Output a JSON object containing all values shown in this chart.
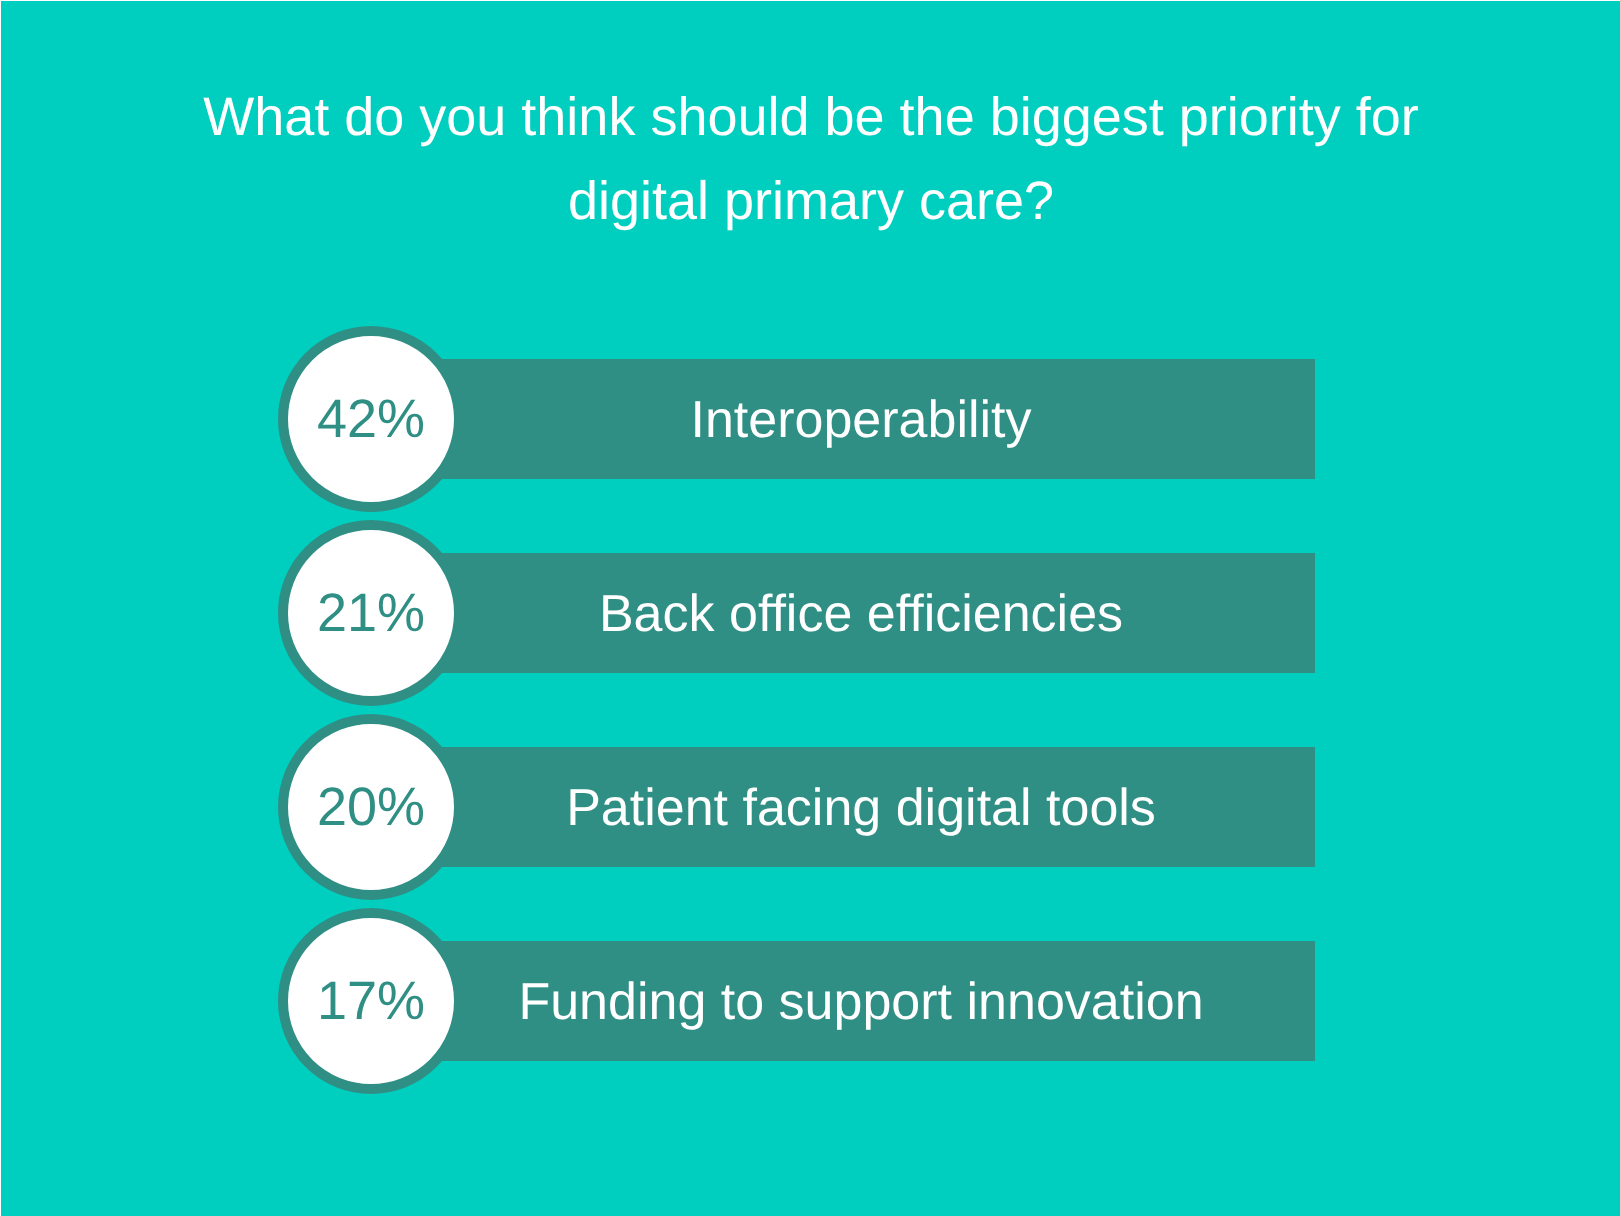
{
  "chart_data": {
    "type": "other",
    "title": "What do you think should be the biggest priority for digital primary care?",
    "categories": [
      "Interoperability",
      "Back office efficiencies",
      "Patient facing digital tools",
      "Funding to support innovation"
    ],
    "values": [
      42,
      21,
      20,
      17
    ],
    "value_labels": [
      "42%",
      "21%",
      "20%",
      "17%"
    ],
    "color": "#2f8f84"
  }
}
